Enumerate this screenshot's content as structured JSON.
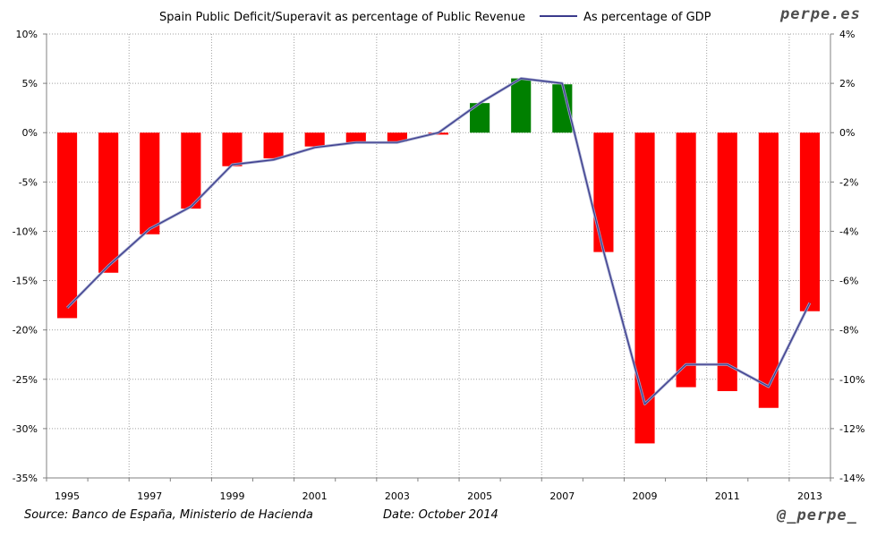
{
  "chart_data": {
    "type": "bar",
    "title": "",
    "xlabel": "",
    "ylabel": "",
    "categories": [
      "1995",
      "1996",
      "1997",
      "1998",
      "1999",
      "2000",
      "2001",
      "2002",
      "2003",
      "2004",
      "2005",
      "2006",
      "2007",
      "2008",
      "2009",
      "2010",
      "2011",
      "2012",
      "2013"
    ],
    "x_tick_labels": [
      "1995",
      "1997",
      "1999",
      "2001",
      "2003",
      "2005",
      "2007",
      "2009",
      "2011",
      "2013"
    ],
    "series": [
      {
        "name": "Spain Public Deficit/Superavit as percentage of Public Revenue",
        "type": "bar",
        "axis": "left",
        "values": [
          -18.8,
          -14.2,
          -10.3,
          -7.7,
          -3.4,
          -2.6,
          -1.4,
          -1.0,
          -0.9,
          -0.2,
          3.0,
          5.5,
          4.9,
          -12.1,
          -31.5,
          -25.8,
          -26.2,
          -27.9,
          -18.1
        ]
      },
      {
        "name": "As percentage of GDP",
        "type": "line",
        "axis": "right",
        "values": [
          -7.1,
          -5.4,
          -3.9,
          -3.0,
          -1.3,
          -1.1,
          -0.6,
          -0.4,
          -0.4,
          0.0,
          1.2,
          2.2,
          2.0,
          -4.8,
          -11.0,
          -9.4,
          -9.4,
          -10.3,
          -6.9
        ]
      }
    ],
    "ylim_left": [
      -35,
      10
    ],
    "ylim_right": [
      -14,
      4
    ],
    "y_left_ticks": [
      "10%",
      "5%",
      "0%",
      "-5%",
      "-10%",
      "-15%",
      "-20%",
      "-25%",
      "-30%",
      "-35%"
    ],
    "y_right_ticks": [
      "4%",
      "2%",
      "0%",
      "-2%",
      "-4%",
      "-6%",
      "-8%",
      "-10%",
      "-12%",
      "-14%"
    ],
    "grid": true,
    "legend_position": "top",
    "colors": {
      "negative_bar": "#ff0000",
      "positive_bar": "#008000",
      "line": "#3a3a8c",
      "grid": "#a0a0a0",
      "axis": "#808080",
      "brand": "#4d4d4d"
    }
  },
  "brand": {
    "site": "perpe.es",
    "handle": "@_perpe_"
  },
  "footer": {
    "source": "Source: Banco de España, Ministerio de Hacienda",
    "date": "Date: October 2014"
  }
}
